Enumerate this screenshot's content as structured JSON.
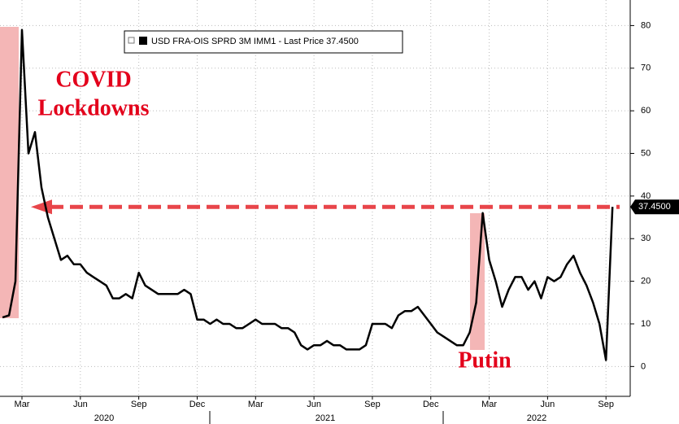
{
  "chart_data": {
    "type": "line",
    "categories": [
      null,
      null,
      null,
      "Mar",
      null,
      null,
      null,
      null,
      null,
      null,
      null,
      null,
      "Jun",
      null,
      null,
      null,
      null,
      null,
      null,
      null,
      null,
      "Sep",
      null,
      null,
      null,
      null,
      null,
      null,
      null,
      null,
      "Dec",
      null,
      null,
      null,
      null,
      null,
      null,
      null,
      null,
      "Mar",
      null,
      null,
      null,
      null,
      null,
      null,
      null,
      null,
      "Jun",
      null,
      null,
      null,
      null,
      null,
      null,
      null,
      null,
      "Sep",
      null,
      null,
      null,
      null,
      null,
      null,
      null,
      null,
      "Dec",
      null,
      null,
      null,
      null,
      null,
      null,
      null,
      null,
      "Mar",
      null,
      null,
      null,
      null,
      null,
      null,
      null,
      null,
      "Jun",
      null,
      null,
      null,
      null,
      null,
      null,
      null,
      null,
      "Sep",
      null
    ],
    "year_labels": [
      "2020",
      "2021",
      "2022"
    ],
    "series": [
      {
        "name": "USD FRA-OIS SPRD 3M IMM1 - Last Price 37.4500",
        "color": "#000000",
        "values": [
          11.5,
          12,
          20,
          79,
          50,
          55,
          42,
          35,
          30,
          25,
          26,
          24,
          24,
          22,
          21,
          20,
          19,
          16,
          16,
          17,
          16,
          22,
          19,
          18,
          17,
          17,
          17,
          17,
          18,
          17,
          11,
          11,
          10,
          11,
          10,
          10,
          9,
          9,
          10,
          11,
          10,
          10,
          10,
          9,
          9,
          8,
          5,
          4,
          5,
          5,
          6,
          5,
          5,
          4,
          4,
          4,
          5,
          10,
          10,
          10,
          9,
          12,
          13,
          13,
          14,
          12,
          10,
          8,
          7,
          6,
          5,
          5,
          8,
          15,
          36,
          25,
          20,
          14,
          18,
          21,
          21,
          18,
          20,
          16,
          21,
          20,
          21,
          24,
          26,
          22,
          19,
          15,
          10,
          1.5,
          37.45
        ]
      }
    ],
    "last_label": {
      "value": 37.45,
      "label": "37.4500"
    },
    "annotations": [
      "COVID",
      "Lockdowns",
      "Putin"
    ],
    "ylim": [
      -7,
      86
    ],
    "yticks": [
      0,
      10,
      20,
      30,
      40,
      50,
      60,
      70,
      80
    ],
    "grid": true
  }
}
